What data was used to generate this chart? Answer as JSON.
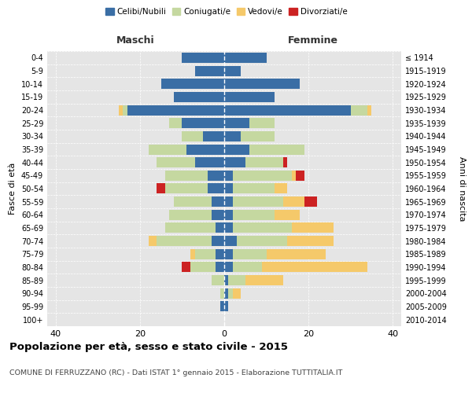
{
  "age_groups": [
    "0-4",
    "5-9",
    "10-14",
    "15-19",
    "20-24",
    "25-29",
    "30-34",
    "35-39",
    "40-44",
    "45-49",
    "50-54",
    "55-59",
    "60-64",
    "65-69",
    "70-74",
    "75-79",
    "80-84",
    "85-89",
    "90-94",
    "95-99",
    "100+"
  ],
  "birth_years": [
    "2010-2014",
    "2005-2009",
    "2000-2004",
    "1995-1999",
    "1990-1994",
    "1985-1989",
    "1980-1984",
    "1975-1979",
    "1970-1974",
    "1965-1969",
    "1960-1964",
    "1955-1959",
    "1950-1954",
    "1945-1949",
    "1940-1944",
    "1935-1939",
    "1930-1934",
    "1925-1929",
    "1920-1924",
    "1915-1919",
    "≤ 1914"
  ],
  "maschi": {
    "celibi": [
      10,
      7,
      15,
      12,
      23,
      10,
      5,
      9,
      7,
      4,
      4,
      3,
      3,
      2,
      3,
      2,
      2,
      0,
      0,
      1,
      0
    ],
    "coniugati": [
      0,
      0,
      0,
      0,
      1,
      3,
      5,
      9,
      9,
      10,
      10,
      9,
      10,
      12,
      13,
      5,
      6,
      3,
      1,
      0,
      0
    ],
    "vedovi": [
      0,
      0,
      0,
      0,
      1,
      0,
      0,
      0,
      0,
      0,
      0,
      0,
      0,
      0,
      2,
      1,
      0,
      0,
      0,
      0,
      0
    ],
    "divorziati": [
      0,
      0,
      0,
      0,
      0,
      0,
      0,
      0,
      0,
      0,
      2,
      0,
      0,
      0,
      0,
      0,
      2,
      0,
      0,
      0,
      0
    ]
  },
  "femmine": {
    "nubili": [
      10,
      4,
      18,
      12,
      30,
      6,
      4,
      6,
      5,
      2,
      2,
      2,
      2,
      2,
      3,
      2,
      2,
      1,
      1,
      1,
      0
    ],
    "coniugate": [
      0,
      0,
      0,
      0,
      4,
      6,
      8,
      13,
      9,
      14,
      10,
      12,
      10,
      14,
      12,
      8,
      7,
      4,
      1,
      0,
      0
    ],
    "vedove": [
      0,
      0,
      0,
      0,
      1,
      0,
      0,
      0,
      0,
      1,
      3,
      5,
      6,
      10,
      11,
      14,
      25,
      9,
      2,
      0,
      0
    ],
    "divorziate": [
      0,
      0,
      0,
      0,
      0,
      0,
      0,
      0,
      1,
      2,
      0,
      3,
      0,
      0,
      0,
      0,
      0,
      0,
      0,
      0,
      0
    ]
  },
  "colors": {
    "celibi": "#3a6ea5",
    "coniugati": "#c5d8a0",
    "vedovi": "#f5c96a",
    "divorziati": "#cc2222"
  },
  "xlim": 42,
  "title": "Popolazione per età, sesso e stato civile - 2015",
  "subtitle": "COMUNE DI FERRUZZANO (RC) - Dati ISTAT 1° gennaio 2015 - Elaborazione TUTTITALIA.IT",
  "ylabel_left": "Fasce di età",
  "ylabel_right": "Anni di nascita",
  "legend_labels": [
    "Celibi/Nubili",
    "Coniugati/e",
    "Vedovi/e",
    "Divorziati/e"
  ],
  "maschi_label": "Maschi",
  "femmine_label": "Femmine"
}
